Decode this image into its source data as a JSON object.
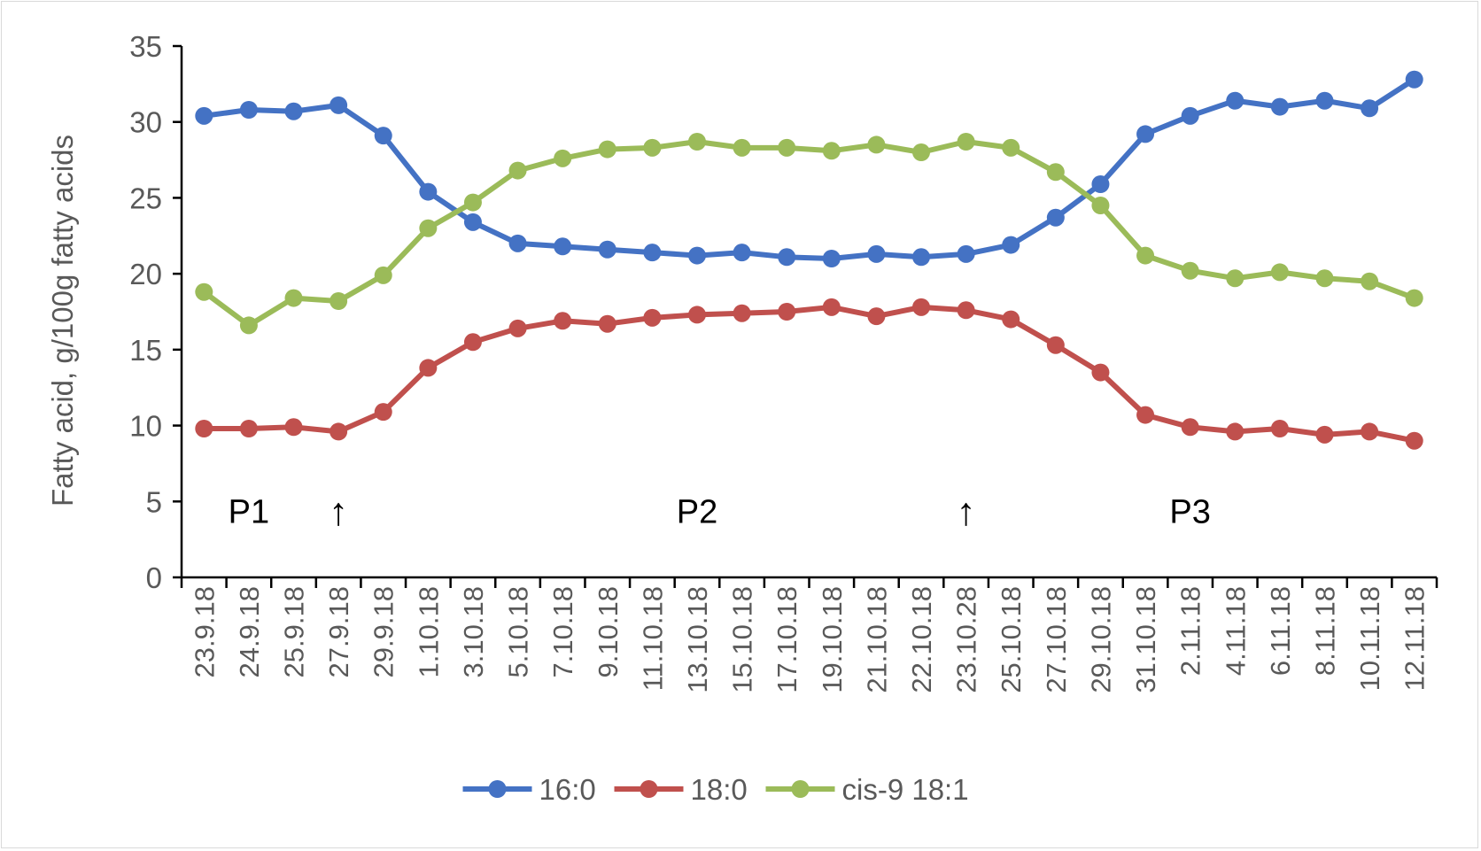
{
  "chart_data": {
    "type": "line",
    "ylabel": "Fatty acid, g/100g fatty acids",
    "xlabel": "",
    "ylim": [
      0,
      35
    ],
    "yticks": [
      0,
      5,
      10,
      15,
      20,
      25,
      30,
      35
    ],
    "grid": false,
    "legend_position": "bottom",
    "categories": [
      "23.9.18",
      "24.9.18",
      "25.9.18",
      "27.9.18",
      "29.9.18",
      "1.10.18",
      "3.10.18",
      "5.10.18",
      "7.10.18",
      "9.10.18",
      "11.10.18",
      "13.10.18",
      "15.10.18",
      "17.10.18",
      "19.10.18",
      "21.10.18",
      "22.10.18",
      "23.10.28",
      "25.10.18",
      "27.10.18",
      "29.10.18",
      "31.10.18",
      "2.11.18",
      "4.11.18",
      "6.11.18",
      "8.11.18",
      "10.11.18",
      "12.11.18"
    ],
    "series": [
      {
        "name": "16:0",
        "color": "#4472C4",
        "values": [
          30.4,
          30.8,
          30.7,
          31.1,
          29.1,
          25.4,
          23.4,
          22.0,
          21.8,
          21.6,
          21.4,
          21.2,
          21.4,
          21.1,
          21.0,
          21.3,
          21.1,
          21.3,
          21.9,
          23.7,
          25.9,
          29.2,
          30.4,
          31.4,
          31.0,
          31.4,
          30.9,
          32.8
        ]
      },
      {
        "name": "18:0",
        "color": "#C0504D",
        "values": [
          9.8,
          9.8,
          9.9,
          9.6,
          10.9,
          13.8,
          15.5,
          16.4,
          16.9,
          16.7,
          17.1,
          17.3,
          17.4,
          17.5,
          17.8,
          17.2,
          17.8,
          17.6,
          17.0,
          15.3,
          13.5,
          10.7,
          9.9,
          9.6,
          9.8,
          9.4,
          9.6,
          9.0
        ]
      },
      {
        "name": "cis-9 18:1",
        "color": "#9BBB59",
        "values": [
          18.8,
          16.6,
          18.4,
          18.2,
          19.9,
          23.0,
          24.7,
          26.8,
          27.6,
          28.2,
          28.3,
          28.7,
          28.3,
          28.3,
          28.1,
          28.5,
          28.0,
          28.7,
          28.3,
          26.7,
          24.5,
          21.2,
          20.2,
          19.7,
          20.1,
          19.7,
          19.5,
          18.4
        ]
      }
    ],
    "annotations": [
      {
        "text": "P1",
        "at_category": "24.9.18",
        "y": 4.4
      },
      {
        "text": "P2",
        "at_category": "13.10.18",
        "y": 4.4
      },
      {
        "text": "P3",
        "at_category": "2.11.18",
        "y": 4.4
      }
    ],
    "arrows": [
      {
        "symbol": "↑",
        "at_category": "27.9.18",
        "y": 4.4
      },
      {
        "symbol": "↑",
        "at_category": "23.10.28",
        "y": 4.4
      }
    ]
  }
}
